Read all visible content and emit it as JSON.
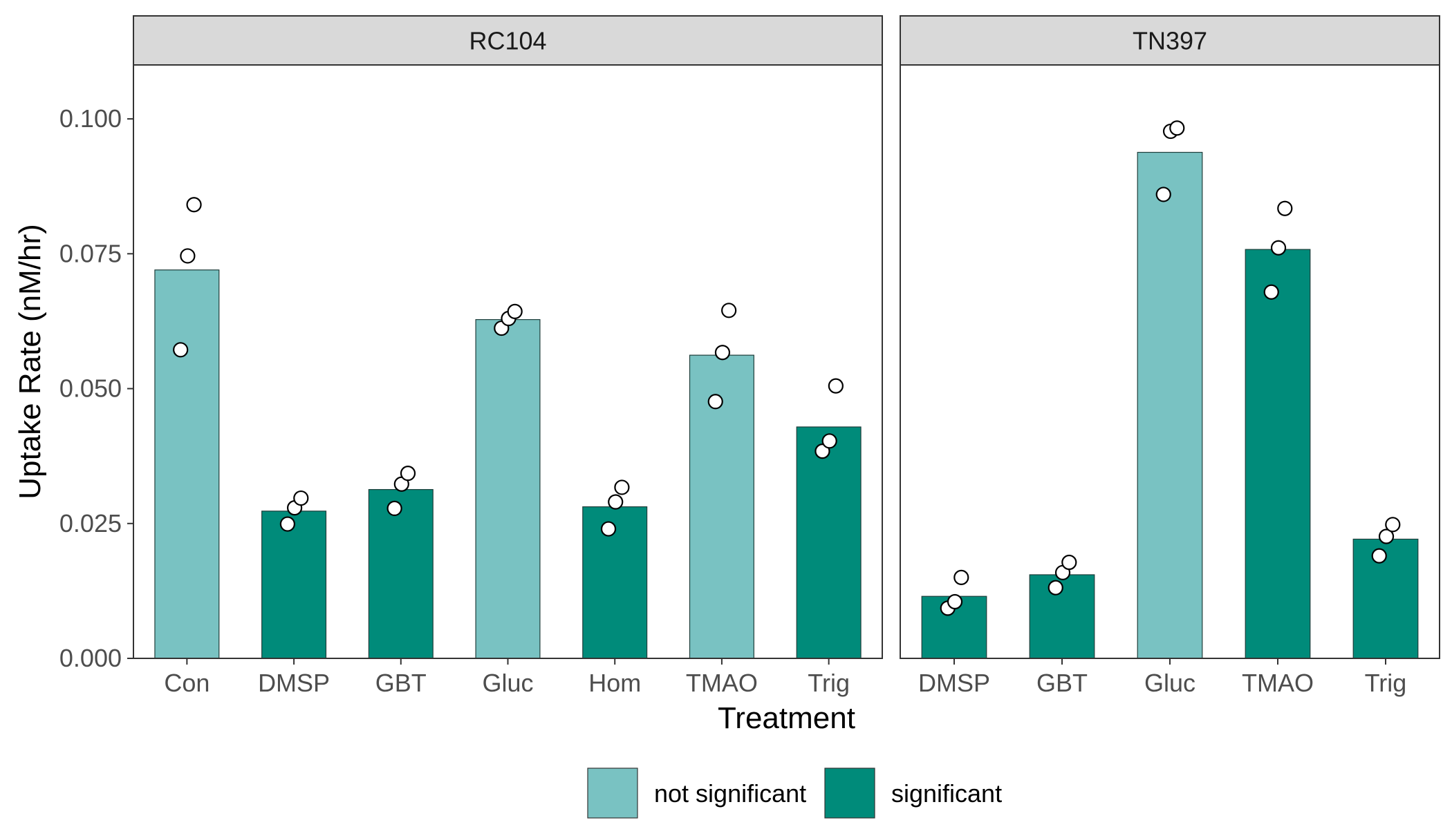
{
  "chart_data": {
    "type": "bar",
    "xlabel": "Treatment",
    "ylabel": "Uptake Rate (nM/hr)",
    "ylim": [
      0,
      0.11
    ],
    "yticks": [
      "0.000",
      "0.025",
      "0.050",
      "0.075",
      "0.100"
    ],
    "grid": false,
    "legend_position": "bottom",
    "legend": [
      {
        "label": "not significant",
        "key": "not_significant",
        "color": "#79c2c2"
      },
      {
        "label": "significant",
        "key": "significant",
        "color": "#008b7a"
      }
    ],
    "point_style": {
      "fill": "#ffffff",
      "stroke": "#000000"
    },
    "panels": [
      {
        "title": "RC104",
        "categories": [
          "Con",
          "DMSP",
          "GBT",
          "Gluc",
          "Hom",
          "TMAO",
          "Trig"
        ],
        "values": [
          0.072,
          0.0273,
          0.0313,
          0.0628,
          0.0281,
          0.0562,
          0.0429
        ],
        "significance": [
          "not_significant",
          "significant",
          "significant",
          "not_significant",
          "significant",
          "not_significant",
          "significant"
        ],
        "points": [
          [
            0.0572,
            0.0746,
            0.0841
          ],
          [
            0.0249,
            0.0279,
            0.0297
          ],
          [
            0.0278,
            0.0323,
            0.0343
          ],
          [
            0.0612,
            0.063,
            0.0643
          ],
          [
            0.024,
            0.029,
            0.0317
          ],
          [
            0.0476,
            0.0567,
            0.0645
          ],
          [
            0.0384,
            0.0403,
            0.0505
          ]
        ]
      },
      {
        "title": "TN397",
        "categories": [
          "DMSP",
          "GBT",
          "Gluc",
          "TMAO",
          "Trig"
        ],
        "values": [
          0.0115,
          0.0155,
          0.0938,
          0.0758,
          0.0221
        ],
        "significance": [
          "significant",
          "significant",
          "not_significant",
          "significant",
          "significant"
        ],
        "points": [
          [
            0.0093,
            0.0105,
            0.015
          ],
          [
            0.0131,
            0.0159,
            0.0178
          ],
          [
            0.086,
            0.0977,
            0.0983
          ],
          [
            0.0679,
            0.0761,
            0.0834
          ],
          [
            0.019,
            0.0226,
            0.0248
          ]
        ]
      }
    ]
  }
}
